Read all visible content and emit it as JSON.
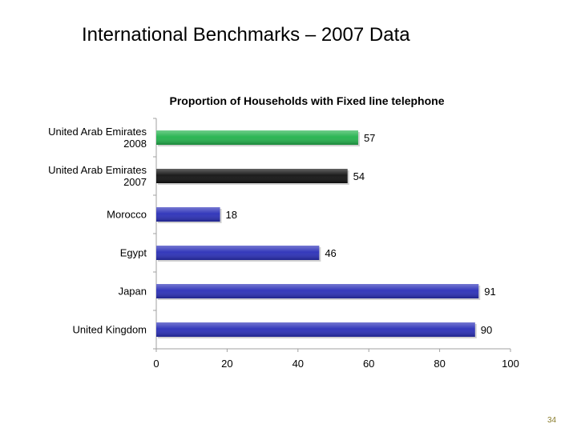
{
  "slide": {
    "title": "International Benchmarks – 2007 Data",
    "page_number": "34"
  },
  "colors": {
    "uae_2008": "#22b24c",
    "uae_2007": "#111111",
    "others": "#2a2fb8",
    "axis": "#a0a0a0"
  },
  "chart_data": {
    "type": "bar",
    "orientation": "horizontal",
    "title": "Proportion of Households  with Fixed line telephone",
    "categories": [
      [
        "United Arab Emirates",
        "2008"
      ],
      [
        "United Arab Emirates",
        "2007"
      ],
      [
        "Morocco"
      ],
      [
        "Egypt"
      ],
      [
        "Japan"
      ],
      [
        "United Kingdom"
      ]
    ],
    "values": [
      57,
      54,
      18,
      46,
      91,
      90
    ],
    "data_labels": [
      "57",
      "54",
      "18",
      "46",
      "91",
      "90"
    ],
    "bar_colors": [
      "#22b24c",
      "#111111",
      "#2a2fb8",
      "#2a2fb8",
      "#2a2fb8",
      "#2a2fb8"
    ],
    "xlim": [
      0,
      100
    ],
    "xticks": [
      0,
      20,
      40,
      60,
      80,
      100
    ],
    "xtick_labels": [
      "0",
      "20",
      "40",
      "60",
      "80",
      "100"
    ],
    "grid": false,
    "legend": "none"
  }
}
